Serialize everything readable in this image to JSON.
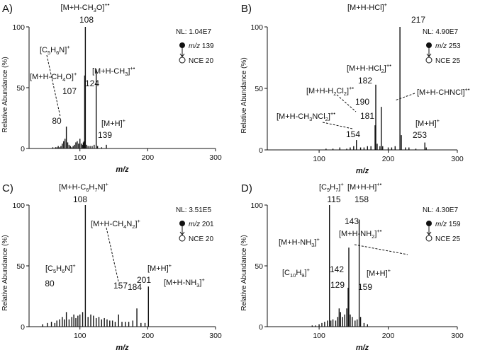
{
  "chart_data": [
    {
      "type": "bar",
      "panel": "A)",
      "xlabel": "m/z",
      "ylabel": "Relative Abundance (%)",
      "xlim": [
        25,
        300
      ],
      "ylim": [
        0,
        100
      ],
      "xticks": [
        "100",
        "200",
        "300"
      ],
      "yticks": [
        "0",
        "50",
        "100"
      ],
      "nl": "NL: 1.04E7",
      "precursor": "139",
      "nce": "NCE 20",
      "x": [
        60,
        64,
        66,
        68,
        70,
        72,
        74,
        76,
        78,
        80,
        82,
        84,
        86,
        88,
        90,
        92,
        94,
        96,
        98,
        100,
        102,
        104,
        105,
        106,
        107,
        108,
        110,
        112,
        115,
        118,
        121,
        124,
        126,
        132,
        139
      ],
      "values": [
        1,
        1,
        1,
        2,
        1,
        2,
        4,
        6,
        8,
        18,
        5,
        3,
        2,
        1,
        2,
        3,
        5,
        6,
        4,
        8,
        4,
        3,
        5,
        6,
        60,
        100,
        3,
        2,
        2,
        2,
        3,
        65,
        2,
        1,
        3
      ],
      "peak_labels": [
        {
          "x": 108,
          "num": "108",
          "ion": [
            [
              "",
              "[M+H-CH"
            ],
            [
              "sub",
              "3"
            ],
            [
              "",
              "O]"
            ],
            [
              "sup",
              "+•"
            ]
          ]
        },
        {
          "x": 80,
          "num": "80",
          "ion": [
            [
              "",
              "[C"
            ],
            [
              "sub",
              "5"
            ],
            [
              "",
              "H"
            ],
            [
              "sub",
              "6"
            ],
            [
              "",
              "N]"
            ],
            [
              "sup",
              "+"
            ]
          ]
        },
        {
          "x": 107,
          "num": "107",
          "ion": [
            [
              "",
              "[M+H-CH"
            ],
            [
              "sub",
              "4"
            ],
            [
              "",
              "O]"
            ],
            [
              "sup",
              "+"
            ]
          ]
        },
        {
          "x": 124,
          "num": "124",
          "ion": [
            [
              "",
              "[M+H-CH"
            ],
            [
              "sub",
              "3"
            ],
            [
              "",
              "]"
            ],
            [
              "sup",
              "+•"
            ]
          ]
        },
        {
          "x": 139,
          "num": "139",
          "ion": [
            [
              "",
              "[M+H]"
            ],
            [
              "sup",
              "+"
            ]
          ]
        }
      ]
    },
    {
      "type": "bar",
      "panel": "B)",
      "xlabel": "m/z",
      "ylabel": "Relative Abundance (%)",
      "xlim": [
        25,
        300
      ],
      "ylim": [
        0,
        100
      ],
      "xticks": [
        "100",
        "200",
        "300"
      ],
      "yticks": [
        "0",
        "50",
        "100"
      ],
      "nl": "NL: 4.90E7",
      "precursor": "253",
      "nce": "NCE 25",
      "x": [
        110,
        120,
        130,
        140,
        145,
        150,
        154,
        160,
        165,
        170,
        175,
        181,
        182,
        184,
        188,
        190,
        192,
        200,
        205,
        210,
        217,
        219,
        225,
        230,
        240,
        253,
        255
      ],
      "values": [
        1,
        1,
        2,
        1,
        2,
        3,
        8,
        2,
        2,
        3,
        3,
        20,
        53,
        5,
        3,
        35,
        3,
        2,
        2,
        3,
        100,
        12,
        2,
        2,
        1,
        6,
        2
      ],
      "peak_labels": [
        {
          "x": 217,
          "num": "217",
          "ion": [
            [
              "",
              "[M+H-HCl]"
            ],
            [
              "sup",
              "+"
            ]
          ]
        },
        {
          "x": 182,
          "num": "182",
          "ion": [
            [
              "",
              "[M+H-HCl"
            ],
            [
              "sub",
              "2"
            ],
            [
              "",
              "]"
            ],
            [
              "sup",
              "+•"
            ]
          ]
        },
        {
          "x": 181,
          "num": "181",
          "ion": [
            [
              "",
              "[M+H-H"
            ],
            [
              "sub",
              "2"
            ],
            [
              "",
              "Cl"
            ],
            [
              "sub",
              "2"
            ],
            [
              "",
              "]"
            ],
            [
              "sup",
              "+•"
            ]
          ]
        },
        {
          "x": 190,
          "num": "190",
          "ion": [
            [
              "",
              "[M+H-CHNCl]"
            ],
            [
              "sup",
              "+•"
            ]
          ]
        },
        {
          "x": 154,
          "num": "154",
          "ion": [
            [
              "",
              "[M+H-CH"
            ],
            [
              "sub",
              "3"
            ],
            [
              "",
              "NCl"
            ],
            [
              "sub",
              "2"
            ],
            [
              "",
              "]"
            ],
            [
              "sup",
              "+•"
            ]
          ]
        },
        {
          "x": 253,
          "num": "253",
          "ion": [
            [
              "",
              "[M+H]"
            ],
            [
              "sup",
              "+"
            ]
          ]
        }
      ]
    },
    {
      "type": "bar",
      "panel": "C)",
      "xlabel": "m/z",
      "ylabel": "Relative Abundance (%)",
      "xlim": [
        25,
        300
      ],
      "ylim": [
        0,
        100
      ],
      "xticks": [
        "100",
        "200",
        "300"
      ],
      "yticks": [
        "0",
        "50",
        "100"
      ],
      "nl": "NL: 3.51E5",
      "precursor": "201",
      "nce": "NCE 20",
      "x": [
        45,
        52,
        58,
        63,
        66,
        70,
        74,
        77,
        80,
        84,
        88,
        91,
        94,
        97,
        100,
        104,
        108,
        112,
        116,
        120,
        124,
        128,
        132,
        136,
        140,
        144,
        148,
        152,
        157,
        162,
        167,
        172,
        178,
        184,
        190,
        196,
        201
      ],
      "values": [
        2,
        3,
        4,
        3,
        5,
        6,
        8,
        6,
        12,
        6,
        8,
        10,
        7,
        9,
        10,
        12,
        100,
        8,
        10,
        9,
        7,
        8,
        6,
        7,
        6,
        5,
        5,
        4,
        10,
        4,
        4,
        4,
        5,
        15,
        3,
        3,
        33
      ],
      "peak_labels": [
        {
          "x": 108,
          "num": "108",
          "ion": [
            [
              "",
              "[M+H-C"
            ],
            [
              "sub",
              "6"
            ],
            [
              "",
              "H"
            ],
            [
              "sub",
              "7"
            ],
            [
              "",
              "N]"
            ],
            [
              "sup",
              "+"
            ]
          ]
        },
        {
          "x": 157,
          "num": "157",
          "ion": [
            [
              "",
              "[M+H-CH"
            ],
            [
              "sub",
              "4"
            ],
            [
              "",
              "N"
            ],
            [
              "sub",
              "2"
            ],
            [
              "",
              "]"
            ],
            [
              "sup",
              "+"
            ]
          ]
        },
        {
          "x": 80,
          "num": "80",
          "ion": [
            [
              "",
              "[C"
            ],
            [
              "sub",
              "5"
            ],
            [
              "",
              "H"
            ],
            [
              "sub",
              "6"
            ],
            [
              "",
              "N]"
            ],
            [
              "sup",
              "+"
            ]
          ]
        },
        {
          "x": 201,
          "num": "201",
          "ion": [
            [
              "",
              "[M+H]"
            ],
            [
              "sup",
              "+"
            ]
          ]
        },
        {
          "x": 184,
          "num": "184",
          "ion": [
            [
              "",
              "[M+H-NH"
            ],
            [
              "sub",
              "3"
            ],
            [
              "",
              "]"
            ],
            [
              "sup",
              "+"
            ]
          ]
        }
      ]
    },
    {
      "type": "bar",
      "panel": "D)",
      "xlabel": "m/z",
      "ylabel": "Relative Abundance (%)",
      "xlim": [
        25,
        300
      ],
      "ylim": [
        0,
        100
      ],
      "xticks": [
        "100",
        "200",
        "300"
      ],
      "yticks": [
        "0",
        "50",
        "100"
      ],
      "nl": "NL: 4.30E7",
      "precursor": "159",
      "nce": "NCE 25",
      "x": [
        90,
        95,
        100,
        104,
        108,
        112,
        115,
        117,
        120,
        124,
        127,
        129,
        131,
        134,
        137,
        140,
        142,
        143,
        145,
        148,
        152,
        155,
        158,
        160,
        165,
        170
      ],
      "values": [
        1,
        1,
        2,
        3,
        4,
        5,
        100,
        5,
        6,
        5,
        8,
        15,
        12,
        8,
        10,
        15,
        32,
        65,
        10,
        8,
        5,
        6,
        88,
        8,
        3,
        2
      ],
      "peak_labels": [
        {
          "x": 115,
          "num": "115",
          "ion": [
            [
              "",
              "[C"
            ],
            [
              "sub",
              "9"
            ],
            [
              "",
              "H"
            ],
            [
              "sub",
              "7"
            ],
            [
              "",
              "]"
            ],
            [
              "sup",
              "+"
            ]
          ]
        },
        {
          "x": 158,
          "num": "158",
          "ion": [
            [
              "",
              "[M+H-H]"
            ],
            [
              "sup",
              "+•"
            ]
          ]
        },
        {
          "x": 143,
          "num": "143",
          "ion": [
            [
              "",
              "[M+H-NH"
            ],
            [
              "sub",
              "2"
            ],
            [
              "",
              "]"
            ],
            [
              "sup",
              "+•"
            ]
          ]
        },
        {
          "x": 142,
          "num": "142",
          "ion": [
            [
              "",
              "[M+H-NH"
            ],
            [
              "sub",
              "3"
            ],
            [
              "",
              "]"
            ],
            [
              "sup",
              "+"
            ]
          ]
        },
        {
          "x": 129,
          "num": "129",
          "ion": [
            [
              "",
              "[C"
            ],
            [
              "sub",
              "10"
            ],
            [
              "",
              "H"
            ],
            [
              "sub",
              "9"
            ],
            [
              "",
              "]"
            ],
            [
              "sup",
              "+"
            ]
          ]
        },
        {
          "x": 159,
          "num": "159",
          "ion": [
            [
              "",
              "[M+H]"
            ],
            [
              "sup",
              "+"
            ]
          ]
        }
      ]
    }
  ],
  "labels": {
    "mz_prefix": "m/z"
  }
}
